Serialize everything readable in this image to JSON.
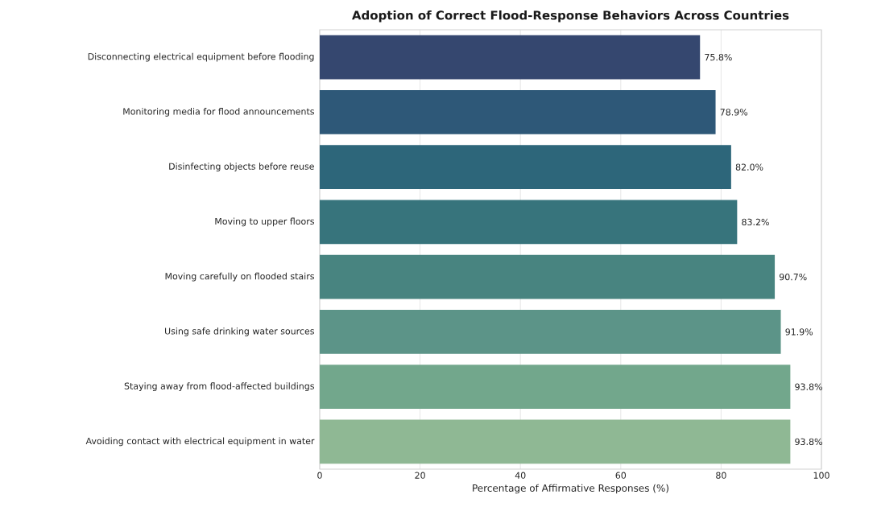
{
  "chart_data": {
    "type": "bar",
    "orientation": "horizontal",
    "title": "Adoption of Correct Flood-Response Behaviors Across Countries",
    "xlabel": "Percentage of Affirmative Responses (%)",
    "categories": [
      "Disconnecting electrical equipment before flooding",
      "Monitoring media for flood announcements",
      "Disinfecting objects before reuse",
      "Moving to upper floors",
      "Moving carefully on flooded stairs",
      "Using safe drinking water sources",
      "Staying away from flood-affected buildings",
      "Avoiding contact with electrical equipment in water"
    ],
    "values": [
      75.8,
      78.9,
      82.0,
      83.2,
      90.7,
      91.9,
      93.8,
      93.8
    ],
    "value_labels": [
      "75.8%",
      "78.9%",
      "82.0%",
      "83.2%",
      "90.7%",
      "91.9%",
      "93.8%",
      "93.8%"
    ],
    "colors": [
      "#35476f",
      "#2e5878",
      "#2d667a",
      "#37747c",
      "#488480",
      "#5c9488",
      "#72a78c",
      "#8fb894"
    ],
    "xlim": [
      0,
      100
    ],
    "xticks": [
      0,
      20,
      40,
      60,
      80,
      100
    ],
    "grid": "x"
  }
}
